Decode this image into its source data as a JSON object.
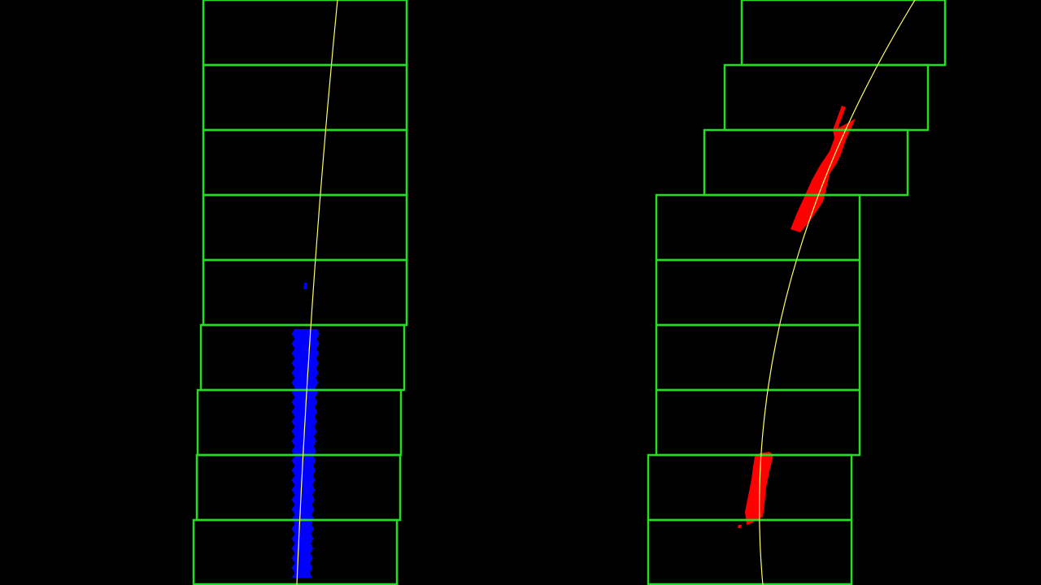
{
  "scene": {
    "background": "#000000",
    "window_color": "#22dd22",
    "fit_color": "#ffff66",
    "left_pixel_color": "#0000ff",
    "right_pixel_color": "#ff0000"
  },
  "left_lane": {
    "window_count": 9
  },
  "right_lane": {
    "window_count": 9
  }
}
